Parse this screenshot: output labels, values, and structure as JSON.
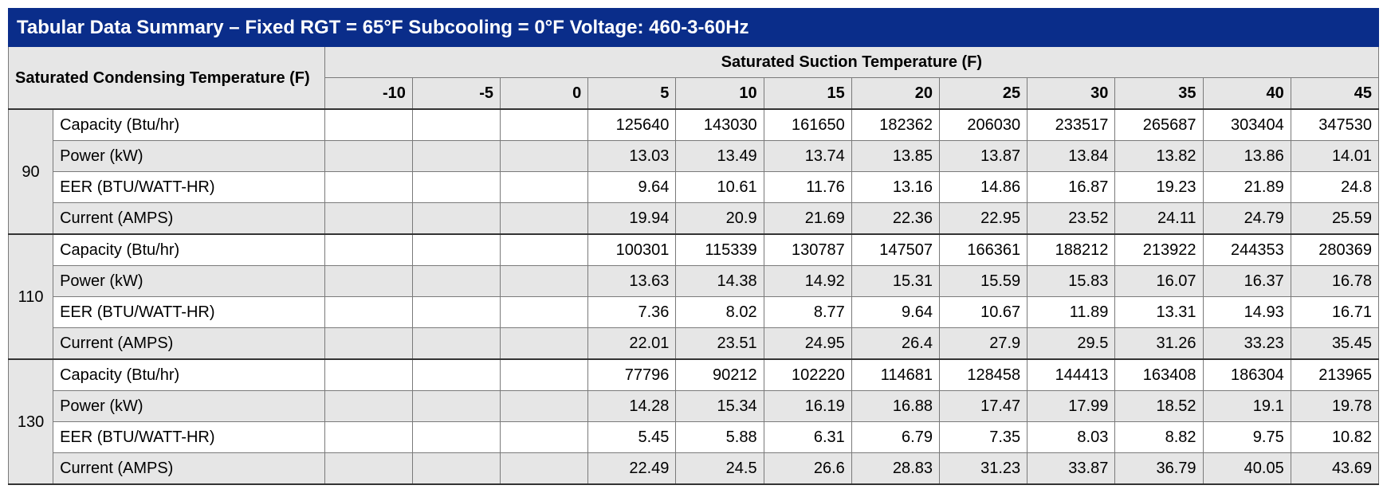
{
  "title": "Tabular Data Summary – Fixed RGT = 65°F    Subcooling = 0°F    Voltage: 460-3-60Hz",
  "header": {
    "left_label": "Saturated Condensing Temperature (F)",
    "top_label": "Saturated Suction Temperature (F)",
    "suction_temps": [
      "-10",
      "-5",
      "0",
      "5",
      "10",
      "15",
      "20",
      "25",
      "30",
      "35",
      "40",
      "45"
    ]
  },
  "metrics": [
    "Capacity (Btu/hr)",
    "Power (kW)",
    "EER (BTU/WATT-HR)",
    "Current (AMPS)"
  ],
  "groups": [
    {
      "cond_temp": "90",
      "rows": [
        [
          "",
          "",
          "",
          "125640",
          "143030",
          "161650",
          "182362",
          "206030",
          "233517",
          "265687",
          "303404",
          "347530"
        ],
        [
          "",
          "",
          "",
          "13.03",
          "13.49",
          "13.74",
          "13.85",
          "13.87",
          "13.84",
          "13.82",
          "13.86",
          "14.01"
        ],
        [
          "",
          "",
          "",
          "9.64",
          "10.61",
          "11.76",
          "13.16",
          "14.86",
          "16.87",
          "19.23",
          "21.89",
          "24.8"
        ],
        [
          "",
          "",
          "",
          "19.94",
          "20.9",
          "21.69",
          "22.36",
          "22.95",
          "23.52",
          "24.11",
          "24.79",
          "25.59"
        ]
      ]
    },
    {
      "cond_temp": "110",
      "rows": [
        [
          "",
          "",
          "",
          "100301",
          "115339",
          "130787",
          "147507",
          "166361",
          "188212",
          "213922",
          "244353",
          "280369"
        ],
        [
          "",
          "",
          "",
          "13.63",
          "14.38",
          "14.92",
          "15.31",
          "15.59",
          "15.83",
          "16.07",
          "16.37",
          "16.78"
        ],
        [
          "",
          "",
          "",
          "7.36",
          "8.02",
          "8.77",
          "9.64",
          "10.67",
          "11.89",
          "13.31",
          "14.93",
          "16.71"
        ],
        [
          "",
          "",
          "",
          "22.01",
          "23.51",
          "24.95",
          "26.4",
          "27.9",
          "29.5",
          "31.26",
          "33.23",
          "35.45"
        ]
      ]
    },
    {
      "cond_temp": "130",
      "rows": [
        [
          "",
          "",
          "",
          "77796",
          "90212",
          "102220",
          "114681",
          "128458",
          "144413",
          "163408",
          "186304",
          "213965"
        ],
        [
          "",
          "",
          "",
          "14.28",
          "15.34",
          "16.19",
          "16.88",
          "17.47",
          "17.99",
          "18.52",
          "19.1",
          "19.78"
        ],
        [
          "",
          "",
          "",
          "5.45",
          "5.88",
          "6.31",
          "6.79",
          "7.35",
          "8.03",
          "8.82",
          "9.75",
          "10.82"
        ],
        [
          "",
          "",
          "",
          "22.49",
          "24.5",
          "26.6",
          "28.83",
          "31.23",
          "33.87",
          "36.79",
          "40.05",
          "43.69"
        ]
      ]
    }
  ],
  "style": {
    "title_bg": "#0a2d8a",
    "title_fg": "#ffffff",
    "header_bg": "#e6e6e6",
    "row_alt_bg": "#e6e6e6",
    "row_bg": "#ffffff",
    "border_color": "#7a7a7a",
    "font_family": "Arial",
    "title_fontsize": 24,
    "cell_fontsize": 20
  }
}
